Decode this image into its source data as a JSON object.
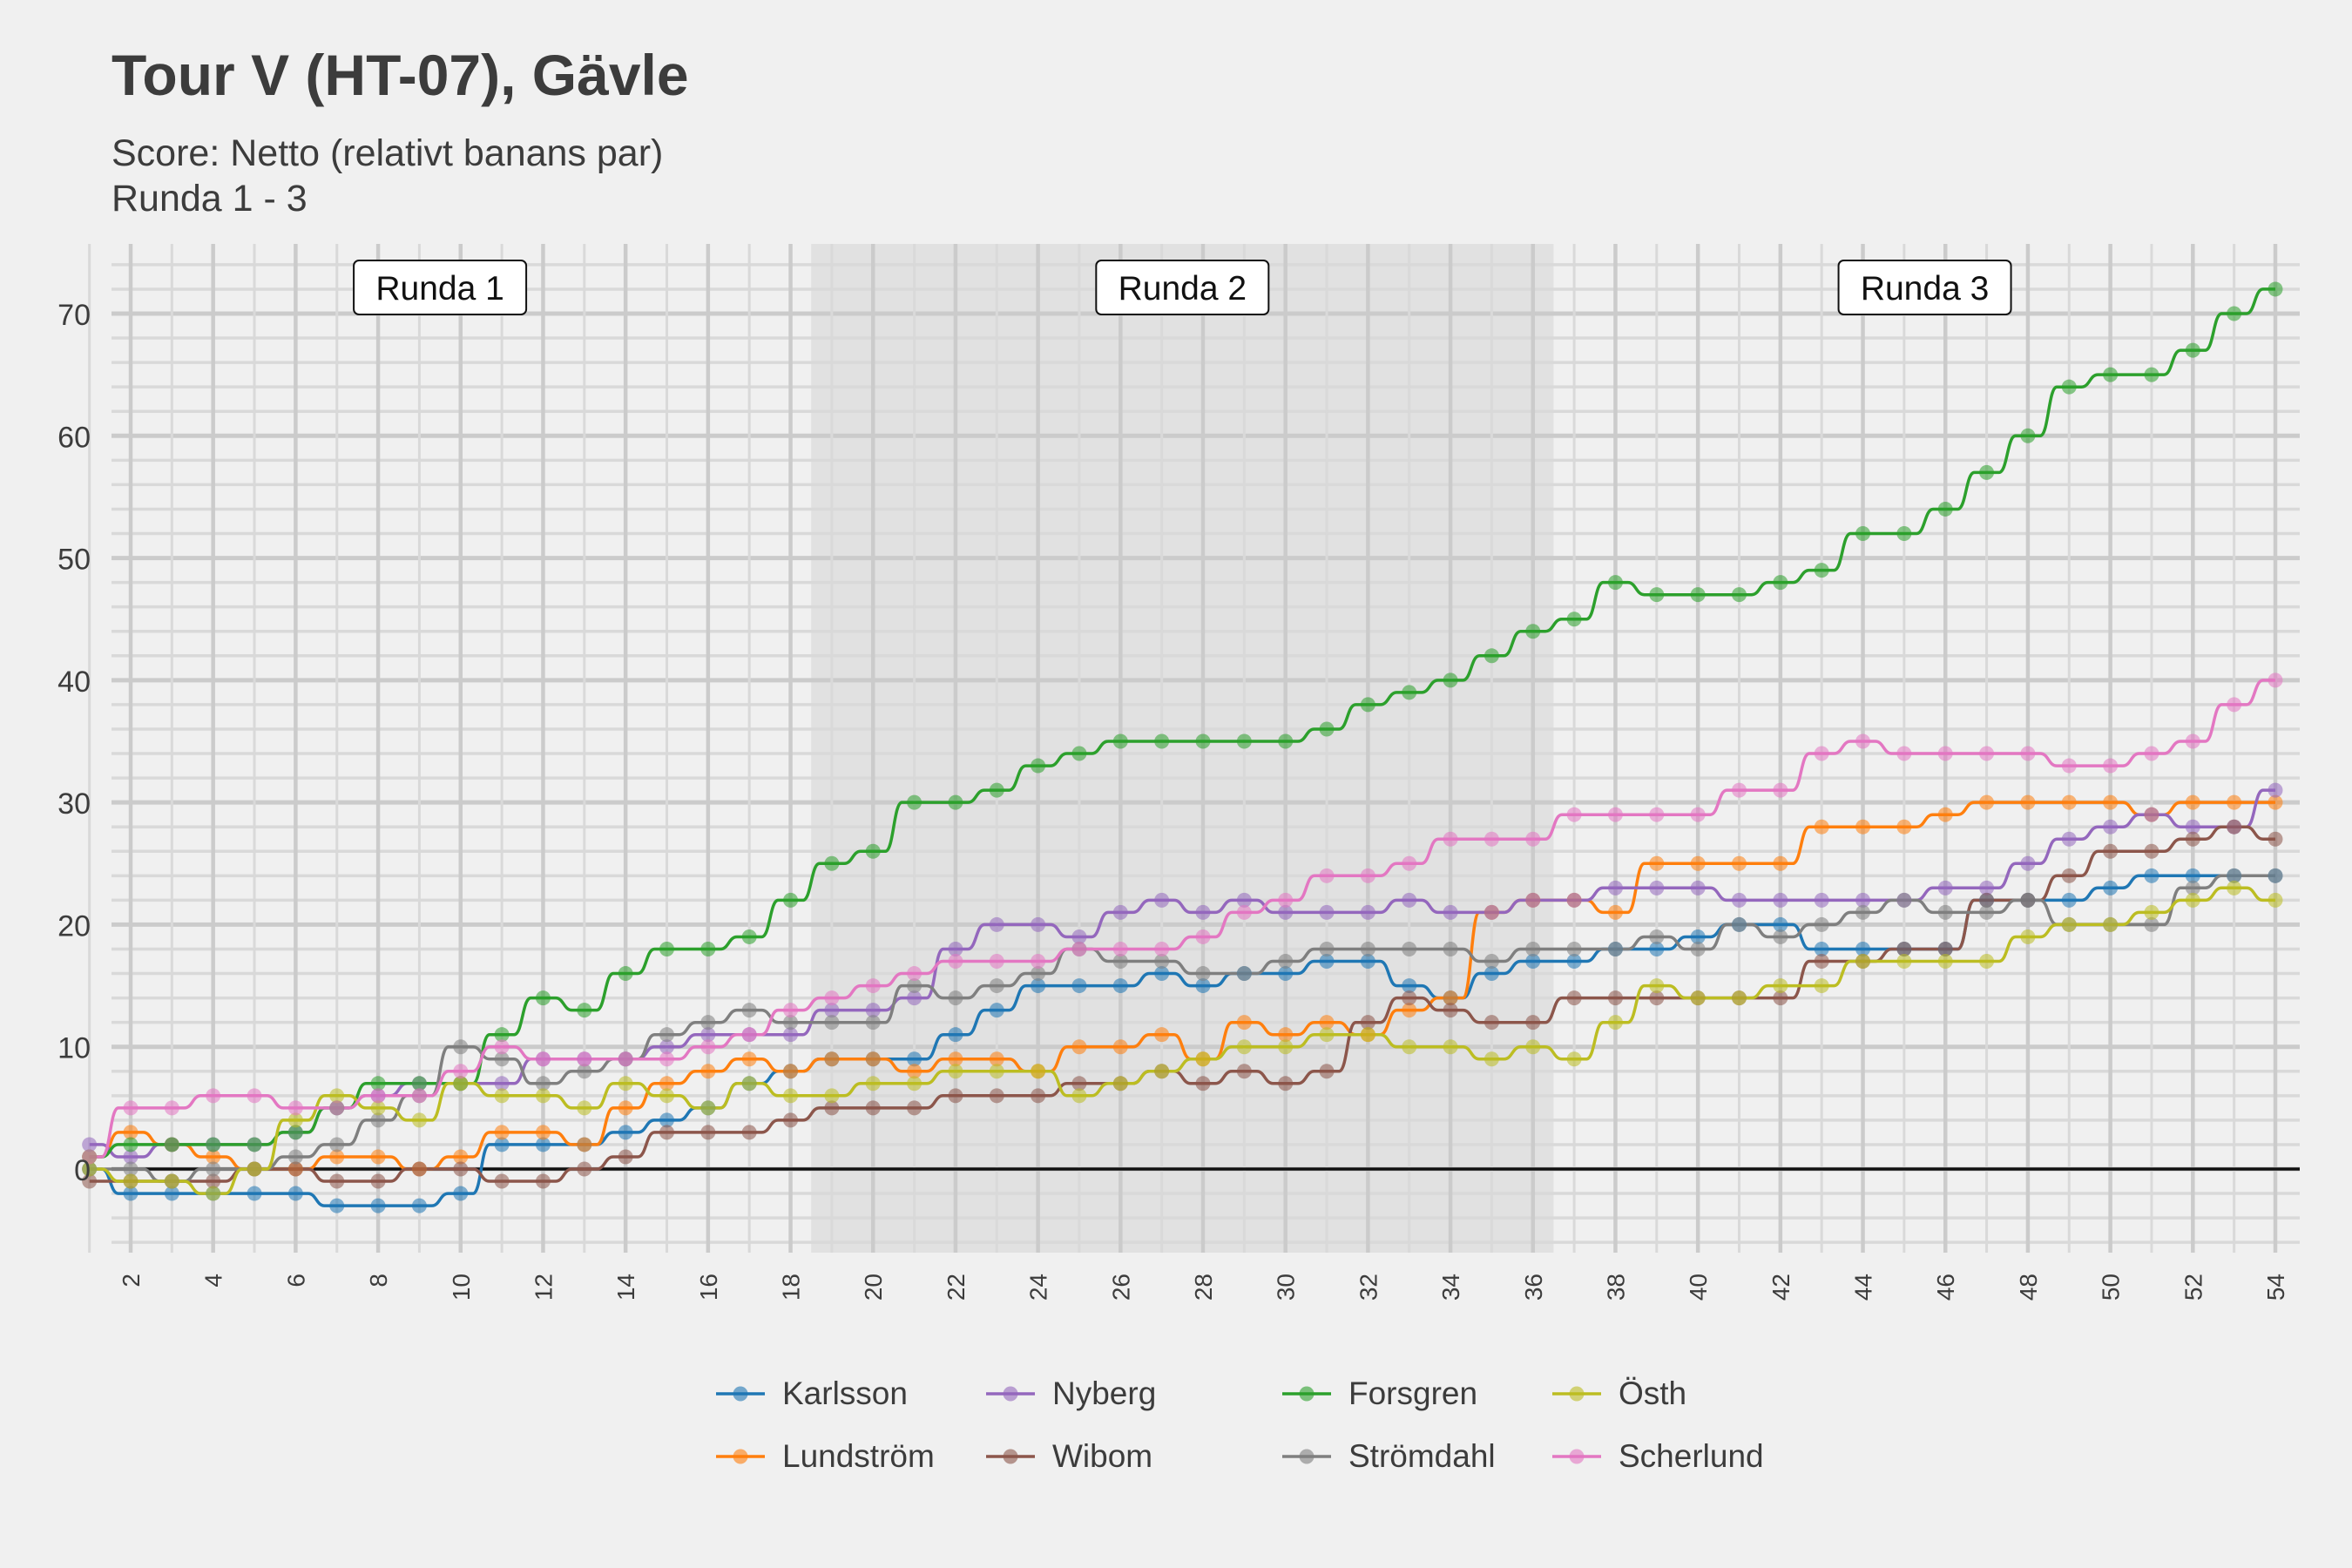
{
  "title": "Tour V (HT-07), Gävle",
  "subtitle_line1": "Score: Netto (relativt banans par)",
  "subtitle_line2": "Runda 1 - 3",
  "chart_data": {
    "type": "line",
    "title": "Tour V (HT-07), Gävle",
    "subtitle": "Score: Netto (relativt banans par)\nRunda 1 - 3",
    "xlabel": "",
    "ylabel": "",
    "xlim": [
      0,
      55
    ],
    "ylim": [
      -6.5,
      75.5
    ],
    "x_ticks": [
      2,
      4,
      6,
      8,
      10,
      12,
      14,
      16,
      18,
      20,
      22,
      24,
      26,
      28,
      30,
      32,
      34,
      36,
      38,
      40,
      42,
      44,
      46,
      48,
      50,
      52,
      54
    ],
    "y_ticks": [
      0,
      10,
      20,
      30,
      40,
      50,
      60,
      70
    ],
    "grid": true,
    "legend_position": "bottom",
    "rounds": [
      {
        "label": "Runda 1",
        "from": 0.5,
        "to": 18.5,
        "shaded": false
      },
      {
        "label": "Runda 2",
        "from": 18.5,
        "to": 36.5,
        "shaded": true
      },
      {
        "label": "Runda 3",
        "from": 36.5,
        "to": 54.5,
        "shaded": false
      }
    ],
    "x": [
      1,
      2,
      3,
      4,
      5,
      6,
      7,
      8,
      9,
      10,
      11,
      12,
      13,
      14,
      15,
      16,
      17,
      18,
      19,
      20,
      21,
      22,
      23,
      24,
      25,
      26,
      27,
      28,
      29,
      30,
      31,
      32,
      33,
      34,
      35,
      36,
      37,
      38,
      39,
      40,
      41,
      42,
      43,
      44,
      45,
      46,
      47,
      48,
      49,
      50,
      51,
      52,
      53,
      54
    ],
    "series": [
      {
        "name": "Karlsson",
        "color": "#1f77b4",
        "values": [
          0,
          -2,
          -2,
          -2,
          -2,
          -2,
          -3,
          -3,
          -3,
          -2,
          2,
          2,
          2,
          3,
          4,
          5,
          7,
          8,
          9,
          9,
          9,
          11,
          13,
          15,
          15,
          15,
          16,
          15,
          16,
          16,
          17,
          17,
          15,
          14,
          16,
          17,
          17,
          18,
          18,
          19,
          20,
          20,
          18,
          18,
          18,
          18,
          22,
          22,
          22,
          23,
          24,
          24,
          24,
          24
        ]
      },
      {
        "name": "Lundström",
        "color": "#ff7f0e",
        "values": [
          1,
          3,
          2,
          1,
          0,
          0,
          1,
          1,
          0,
          1,
          3,
          3,
          2,
          5,
          7,
          8,
          9,
          8,
          9,
          9,
          8,
          9,
          9,
          8,
          10,
          10,
          11,
          9,
          12,
          11,
          12,
          11,
          13,
          14,
          21,
          22,
          22,
          21,
          25,
          25,
          25,
          25,
          28,
          28,
          28,
          29,
          30,
          30,
          30,
          30,
          29,
          30,
          30,
          30
        ]
      },
      {
        "name": "Nyberg",
        "color": "#9467bd",
        "values": [
          2,
          1,
          2,
          2,
          2,
          3,
          5,
          6,
          7,
          7,
          7,
          9,
          9,
          9,
          10,
          11,
          11,
          11,
          13,
          13,
          14,
          18,
          20,
          20,
          19,
          21,
          22,
          21,
          22,
          21,
          21,
          21,
          22,
          21,
          21,
          22,
          22,
          23,
          23,
          23,
          22,
          22,
          22,
          22,
          22,
          23,
          23,
          25,
          27,
          28,
          29,
          28,
          28,
          31
        ]
      },
      {
        "name": "Wibom",
        "color": "#8c564b",
        "values": [
          -1,
          -1,
          -1,
          -1,
          0,
          0,
          -1,
          -1,
          0,
          0,
          -1,
          -1,
          0,
          1,
          3,
          3,
          3,
          4,
          5,
          5,
          5,
          6,
          6,
          6,
          7,
          7,
          8,
          7,
          8,
          7,
          8,
          12,
          14,
          13,
          12,
          12,
          14,
          14,
          14,
          14,
          14,
          14,
          17,
          17,
          18,
          18,
          22,
          22,
          24,
          26,
          26,
          27,
          28,
          27
        ]
      },
      {
        "name": "Forsgren",
        "color": "#2ca02c",
        "values": [
          1,
          2,
          2,
          2,
          2,
          3,
          5,
          7,
          7,
          7,
          11,
          14,
          13,
          16,
          18,
          18,
          19,
          22,
          25,
          26,
          30,
          30,
          31,
          33,
          34,
          35,
          35,
          35,
          35,
          35,
          36,
          38,
          39,
          40,
          42,
          44,
          45,
          48,
          47,
          47,
          47,
          48,
          49,
          52,
          52,
          54,
          57,
          60,
          64,
          65,
          65,
          67,
          70,
          72
        ]
      },
      {
        "name": "Strömdahl",
        "color": "#7f7f7f",
        "values": [
          0,
          0,
          -1,
          0,
          0,
          1,
          2,
          4,
          6,
          10,
          9,
          7,
          8,
          9,
          11,
          12,
          13,
          12,
          12,
          12,
          15,
          14,
          15,
          16,
          18,
          17,
          17,
          16,
          16,
          17,
          18,
          18,
          18,
          18,
          17,
          18,
          18,
          18,
          19,
          18,
          20,
          19,
          20,
          21,
          22,
          21,
          21,
          22,
          20,
          20,
          20,
          23,
          24,
          24
        ]
      },
      {
        "name": "Östh",
        "color": "#bcbd22",
        "values": [
          0,
          -1,
          -1,
          -2,
          0,
          4,
          6,
          5,
          4,
          7,
          6,
          6,
          5,
          7,
          6,
          5,
          7,
          6,
          6,
          7,
          7,
          8,
          8,
          8,
          6,
          7,
          8,
          9,
          10,
          10,
          11,
          11,
          10,
          10,
          9,
          10,
          9,
          12,
          15,
          14,
          14,
          15,
          15,
          17,
          17,
          17,
          17,
          19,
          20,
          20,
          21,
          22,
          23,
          22
        ]
      },
      {
        "name": "Scherlund",
        "color": "#e377c2",
        "values": [
          1,
          5,
          5,
          6,
          6,
          5,
          5,
          6,
          6,
          8,
          10,
          9,
          9,
          9,
          9,
          10,
          11,
          13,
          14,
          15,
          16,
          17,
          17,
          17,
          18,
          18,
          18,
          19,
          21,
          22,
          24,
          24,
          25,
          27,
          27,
          27,
          29,
          29,
          29,
          29,
          31,
          31,
          34,
          35,
          34,
          34,
          34,
          34,
          33,
          33,
          34,
          35,
          38,
          40
        ]
      }
    ]
  }
}
